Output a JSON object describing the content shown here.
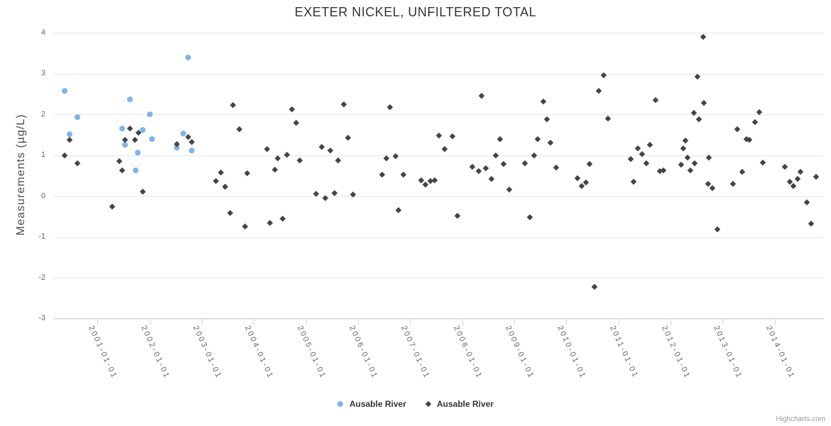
{
  "title": "EXETER NICKEL, UNFILTERED TOTAL",
  "credits": "Highcharts.com",
  "y_axis": {
    "title": "Measurements (µg/L)",
    "ticks": [
      4,
      3,
      2,
      1,
      0,
      -1,
      -2,
      -3
    ]
  },
  "x_axis": {
    "ticks": [
      {
        "year": 2001,
        "label": "2001-01-01"
      },
      {
        "year": 2002,
        "label": "2002-01-01"
      },
      {
        "year": 2003,
        "label": "2003-01-01"
      },
      {
        "year": 2004,
        "label": "2004-01-01"
      },
      {
        "year": 2005,
        "label": "2005-01-01"
      },
      {
        "year": 2006,
        "label": "2006-01-01"
      },
      {
        "year": 2007,
        "label": "2007-01-01"
      },
      {
        "year": 2008,
        "label": "2008-01-01"
      },
      {
        "year": 2009,
        "label": "2009-01-01"
      },
      {
        "year": 2010,
        "label": "2010-01-01"
      },
      {
        "year": 2011,
        "label": "2011-01-01"
      },
      {
        "year": 2012,
        "label": "2012-01-01"
      },
      {
        "year": 2013,
        "label": "2013-01-01"
      },
      {
        "year": 2014,
        "label": "2014-01-01"
      }
    ]
  },
  "legend": {
    "items": [
      {
        "label": "Ausable River",
        "marker": "circle",
        "color": "#7cb5ec"
      },
      {
        "label": "Ausable River",
        "marker": "diamond",
        "color": "#434348"
      }
    ]
  },
  "chart_data": {
    "type": "scatter",
    "title": "EXETER NICKEL, UNFILTERED TOTAL",
    "xlabel": "",
    "ylabel": "Measurements (µg/L)",
    "x_unit": "decimal_year",
    "xlim": [
      2000.15,
      2014.95
    ],
    "ylim": [
      -3,
      4
    ],
    "grid": "horizontal",
    "legend_position": "bottom-center",
    "series": [
      {
        "name": "Ausable River",
        "marker": "circle",
        "color": "#7cb5ec",
        "points": [
          [
            2000.37,
            2.57
          ],
          [
            2000.46,
            1.51
          ],
          [
            2000.61,
            1.93
          ],
          [
            2001.47,
            1.66
          ],
          [
            2001.53,
            1.26
          ],
          [
            2001.62,
            2.36
          ],
          [
            2001.73,
            0.63
          ],
          [
            2001.78,
            1.06
          ],
          [
            2001.87,
            1.62
          ],
          [
            2002.0,
            2.0
          ],
          [
            2002.05,
            1.4
          ],
          [
            2002.52,
            1.19
          ],
          [
            2002.64,
            1.53
          ],
          [
            2002.74,
            3.4
          ],
          [
            2002.81,
            1.11
          ]
        ]
      },
      {
        "name": "Ausable River",
        "marker": "diamond",
        "color": "#434348",
        "points": [
          [
            2000.37,
            1.0
          ],
          [
            2000.46,
            1.37
          ],
          [
            2000.61,
            0.8
          ],
          [
            2001.28,
            -0.26
          ],
          [
            2001.42,
            0.86
          ],
          [
            2001.48,
            0.63
          ],
          [
            2001.53,
            1.38
          ],
          [
            2001.63,
            1.65
          ],
          [
            2001.72,
            1.38
          ],
          [
            2001.79,
            1.55
          ],
          [
            2001.87,
            0.1
          ],
          [
            2002.53,
            1.27
          ],
          [
            2002.74,
            1.44
          ],
          [
            2002.81,
            1.32
          ],
          [
            2003.27,
            0.37
          ],
          [
            2003.37,
            0.58
          ],
          [
            2003.45,
            0.22
          ],
          [
            2003.55,
            -0.42
          ],
          [
            2003.6,
            2.22
          ],
          [
            2003.72,
            1.63
          ],
          [
            2003.83,
            -0.74
          ],
          [
            2003.88,
            0.56
          ],
          [
            2004.26,
            1.15
          ],
          [
            2004.31,
            -0.66
          ],
          [
            2004.4,
            0.65
          ],
          [
            2004.46,
            0.92
          ],
          [
            2004.55,
            -0.55
          ],
          [
            2004.64,
            1.01
          ],
          [
            2004.73,
            2.12
          ],
          [
            2004.81,
            1.8
          ],
          [
            2004.88,
            0.87
          ],
          [
            2005.2,
            0.05
          ],
          [
            2005.31,
            1.2
          ],
          [
            2005.38,
            -0.05
          ],
          [
            2005.47,
            1.11
          ],
          [
            2005.55,
            0.07
          ],
          [
            2005.62,
            0.87
          ],
          [
            2005.73,
            2.24
          ],
          [
            2005.81,
            1.43
          ],
          [
            2005.9,
            0.04
          ],
          [
            2006.47,
            0.52
          ],
          [
            2006.54,
            0.93
          ],
          [
            2006.62,
            2.18
          ],
          [
            2006.72,
            0.98
          ],
          [
            2006.78,
            -0.34
          ],
          [
            2006.88,
            0.53
          ],
          [
            2007.22,
            0.38
          ],
          [
            2007.3,
            0.27
          ],
          [
            2007.39,
            0.36
          ],
          [
            2007.48,
            0.39
          ],
          [
            2007.55,
            1.48
          ],
          [
            2007.66,
            1.15
          ],
          [
            2007.82,
            1.46
          ],
          [
            2007.91,
            -0.49
          ],
          [
            2008.2,
            0.72
          ],
          [
            2008.32,
            0.61
          ],
          [
            2008.38,
            2.45
          ],
          [
            2008.46,
            0.68
          ],
          [
            2008.56,
            0.42
          ],
          [
            2008.64,
            1.0
          ],
          [
            2008.73,
            1.39
          ],
          [
            2008.8,
            0.78
          ],
          [
            2008.9,
            0.15
          ],
          [
            2009.21,
            0.8
          ],
          [
            2009.3,
            -0.52
          ],
          [
            2009.38,
            0.99
          ],
          [
            2009.45,
            1.39
          ],
          [
            2009.56,
            2.32
          ],
          [
            2009.63,
            1.88
          ],
          [
            2009.7,
            1.3
          ],
          [
            2009.8,
            0.7
          ],
          [
            2010.21,
            0.43
          ],
          [
            2010.29,
            0.24
          ],
          [
            2010.38,
            0.33
          ],
          [
            2010.45,
            0.79
          ],
          [
            2010.54,
            -2.22
          ],
          [
            2010.62,
            2.57
          ],
          [
            2010.72,
            2.95
          ],
          [
            2010.8,
            1.89
          ],
          [
            2011.24,
            0.91
          ],
          [
            2011.29,
            0.34
          ],
          [
            2011.37,
            1.16
          ],
          [
            2011.45,
            1.03
          ],
          [
            2011.54,
            0.8
          ],
          [
            2011.61,
            1.26
          ],
          [
            2011.72,
            2.35
          ],
          [
            2011.8,
            0.61
          ],
          [
            2011.86,
            0.63
          ],
          [
            2012.21,
            0.77
          ],
          [
            2012.24,
            1.16
          ],
          [
            2012.29,
            1.36
          ],
          [
            2012.33,
            0.94
          ],
          [
            2012.38,
            0.62
          ],
          [
            2012.45,
            2.03
          ],
          [
            2012.47,
            0.8
          ],
          [
            2012.52,
            2.92
          ],
          [
            2012.54,
            1.87
          ],
          [
            2012.63,
            3.89
          ],
          [
            2012.64,
            2.28
          ],
          [
            2012.72,
            0.3
          ],
          [
            2012.74,
            0.94
          ],
          [
            2012.8,
            0.19
          ],
          [
            2012.9,
            -0.81
          ],
          [
            2013.2,
            0.3
          ],
          [
            2013.28,
            1.64
          ],
          [
            2013.38,
            0.59
          ],
          [
            2013.46,
            1.39
          ],
          [
            2013.52,
            1.38
          ],
          [
            2013.62,
            1.81
          ],
          [
            2013.71,
            2.06
          ],
          [
            2013.78,
            0.81
          ],
          [
            2014.19,
            0.71
          ],
          [
            2014.29,
            0.35
          ],
          [
            2014.36,
            0.25
          ],
          [
            2014.44,
            0.42
          ],
          [
            2014.49,
            0.6
          ],
          [
            2014.62,
            -0.16
          ],
          [
            2014.7,
            -0.68
          ],
          [
            2014.79,
            0.47
          ]
        ]
      }
    ]
  }
}
